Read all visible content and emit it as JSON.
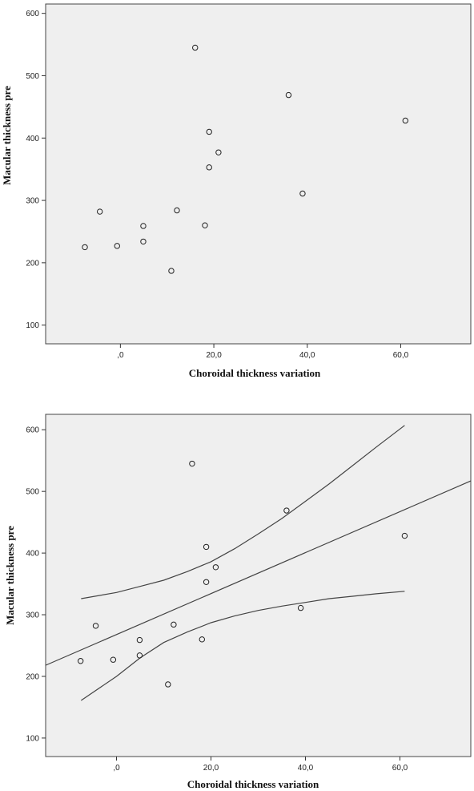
{
  "chart_data": [
    {
      "type": "scatter",
      "xlabel": "Choroidal thickness variation",
      "ylabel": "Macular thickness pre",
      "xlim": [
        -16,
        75
      ],
      "ylim": [
        70,
        615
      ],
      "x_ticks": [
        {
          "value": 0,
          "label": ",0"
        },
        {
          "value": 20,
          "label": "20,0"
        },
        {
          "value": 40,
          "label": "40,0"
        },
        {
          "value": 60,
          "label": "60,0"
        }
      ],
      "y_ticks": [
        {
          "value": 100,
          "label": "100"
        },
        {
          "value": 200,
          "label": "200"
        },
        {
          "value": 300,
          "label": "300"
        },
        {
          "value": 400,
          "label": "400"
        },
        {
          "value": 500,
          "label": "500"
        },
        {
          "value": 600,
          "label": "600"
        }
      ],
      "points": [
        {
          "x": -7.6,
          "y": 225
        },
        {
          "x": -4.4,
          "y": 282
        },
        {
          "x": -0.7,
          "y": 227
        },
        {
          "x": 4.9,
          "y": 259
        },
        {
          "x": 4.9,
          "y": 234
        },
        {
          "x": 10.9,
          "y": 187
        },
        {
          "x": 12.1,
          "y": 284
        },
        {
          "x": 16.0,
          "y": 545
        },
        {
          "x": 18.1,
          "y": 260
        },
        {
          "x": 19.0,
          "y": 410
        },
        {
          "x": 19.0,
          "y": 353
        },
        {
          "x": 21.0,
          "y": 377
        },
        {
          "x": 36.0,
          "y": 469
        },
        {
          "x": 39.0,
          "y": 311
        },
        {
          "x": 61.0,
          "y": 428
        }
      ],
      "fit_line": null,
      "confidence_band": null,
      "grid": false
    },
    {
      "type": "scatter",
      "xlabel": "Choroidal thickness variation",
      "ylabel": "Macular thickness pre",
      "xlim": [
        -15,
        75
      ],
      "ylim": [
        70,
        625
      ],
      "x_ticks": [
        {
          "value": 0,
          "label": ",0"
        },
        {
          "value": 20,
          "label": "20,0"
        },
        {
          "value": 40,
          "label": "40,0"
        },
        {
          "value": 60,
          "label": "60,0"
        }
      ],
      "y_ticks": [
        {
          "value": 100,
          "label": "100"
        },
        {
          "value": 200,
          "label": "200"
        },
        {
          "value": 300,
          "label": "300"
        },
        {
          "value": 400,
          "label": "400"
        },
        {
          "value": 500,
          "label": "500"
        },
        {
          "value": 600,
          "label": "600"
        }
      ],
      "points": [
        {
          "x": -7.6,
          "y": 225
        },
        {
          "x": -4.4,
          "y": 282
        },
        {
          "x": -0.7,
          "y": 227
        },
        {
          "x": 4.9,
          "y": 259
        },
        {
          "x": 4.9,
          "y": 234
        },
        {
          "x": 10.9,
          "y": 187
        },
        {
          "x": 12.1,
          "y": 284
        },
        {
          "x": 16.0,
          "y": 545
        },
        {
          "x": 18.1,
          "y": 260
        },
        {
          "x": 19.0,
          "y": 410
        },
        {
          "x": 19.0,
          "y": 353
        },
        {
          "x": 21.0,
          "y": 377
        },
        {
          "x": 36.0,
          "y": 469
        },
        {
          "x": 39.0,
          "y": 311
        },
        {
          "x": 61.0,
          "y": 428
        }
      ],
      "fit_line": {
        "x": [
          -15,
          75
        ],
        "y": [
          218,
          517
        ]
      },
      "confidence_band": {
        "upper": {
          "x": [
            -7.5,
            0,
            5,
            10,
            15,
            20,
            25,
            30,
            35,
            40,
            45,
            50,
            55,
            61
          ],
          "y": [
            326,
            336,
            346,
            356,
            370,
            386,
            407,
            431,
            456,
            484,
            512,
            542,
            572,
            607
          ]
        },
        "lower": {
          "x": [
            -7.5,
            0,
            5,
            10,
            15,
            20,
            25,
            30,
            35,
            40,
            45,
            50,
            55,
            61
          ],
          "y": [
            161,
            200,
            230,
            255,
            272,
            287,
            298,
            307,
            314,
            320,
            326,
            330,
            334,
            338
          ]
        }
      },
      "grid": false
    }
  ]
}
